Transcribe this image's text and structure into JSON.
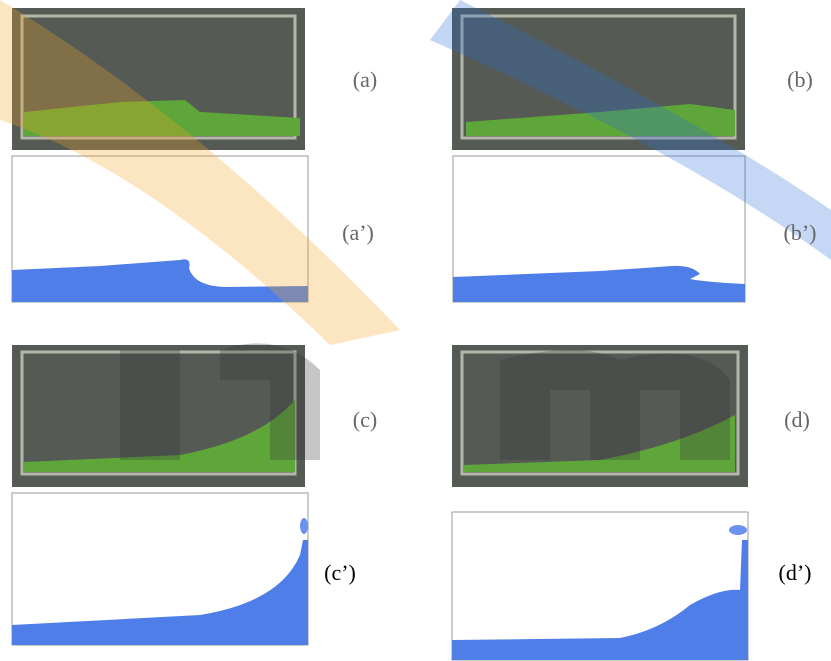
{
  "panels": [
    {
      "label": "(a)"
    },
    {
      "label": "(b)"
    },
    {
      "label": "(a’)"
    },
    {
      "label": "(b’)"
    },
    {
      "label": "(c)"
    },
    {
      "label": "(d)"
    },
    {
      "label": "(c’)"
    },
    {
      "label": "(d’)"
    }
  ]
}
